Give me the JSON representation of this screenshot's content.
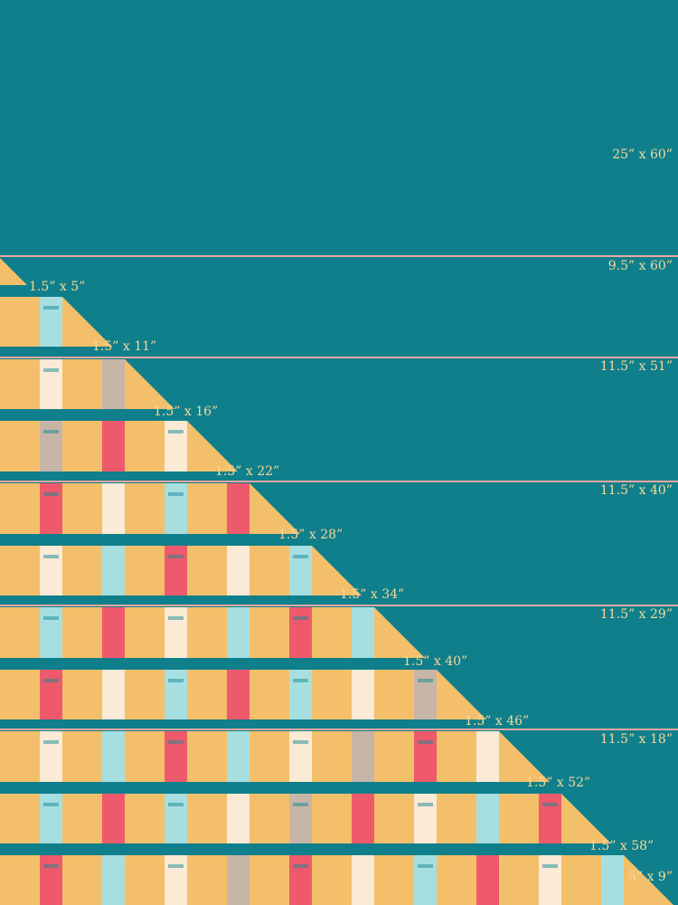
{
  "colors": {
    "background": "#0f7f8b",
    "yellow": "#f4bf6a",
    "seam": "#e9a7a1",
    "label": "#f7d89a",
    "coral": "#ee5a6c",
    "aqua": "#a7dfe0",
    "cream": "#fbead6",
    "taupe": "#c7b5a8",
    "teal_dark": "#158995"
  },
  "labels": {
    "top_panel": "25” x 60”",
    "strip_1": "1.5” x 5”",
    "strip_2": "1.5” x 11”",
    "strip_3": "1.5” x 16”",
    "strip_4": "1.5” x 22”",
    "strip_5": "1.5” x 28”",
    "strip_6": "1.5” x 34”",
    "strip_7": "1.5” x 40”",
    "strip_8": "1.5” x 46”",
    "strip_9": "1.5” x 52”",
    "strip_10": "1.5” x 58”",
    "panel_1": "9.5” x 60”",
    "panel_2": "11.5” x 51”",
    "panel_3": "11.5” x 40”",
    "panel_4": "11.5” x 29”",
    "panel_5": "11.5” x 18”",
    "corner": "5” x 9”"
  }
}
